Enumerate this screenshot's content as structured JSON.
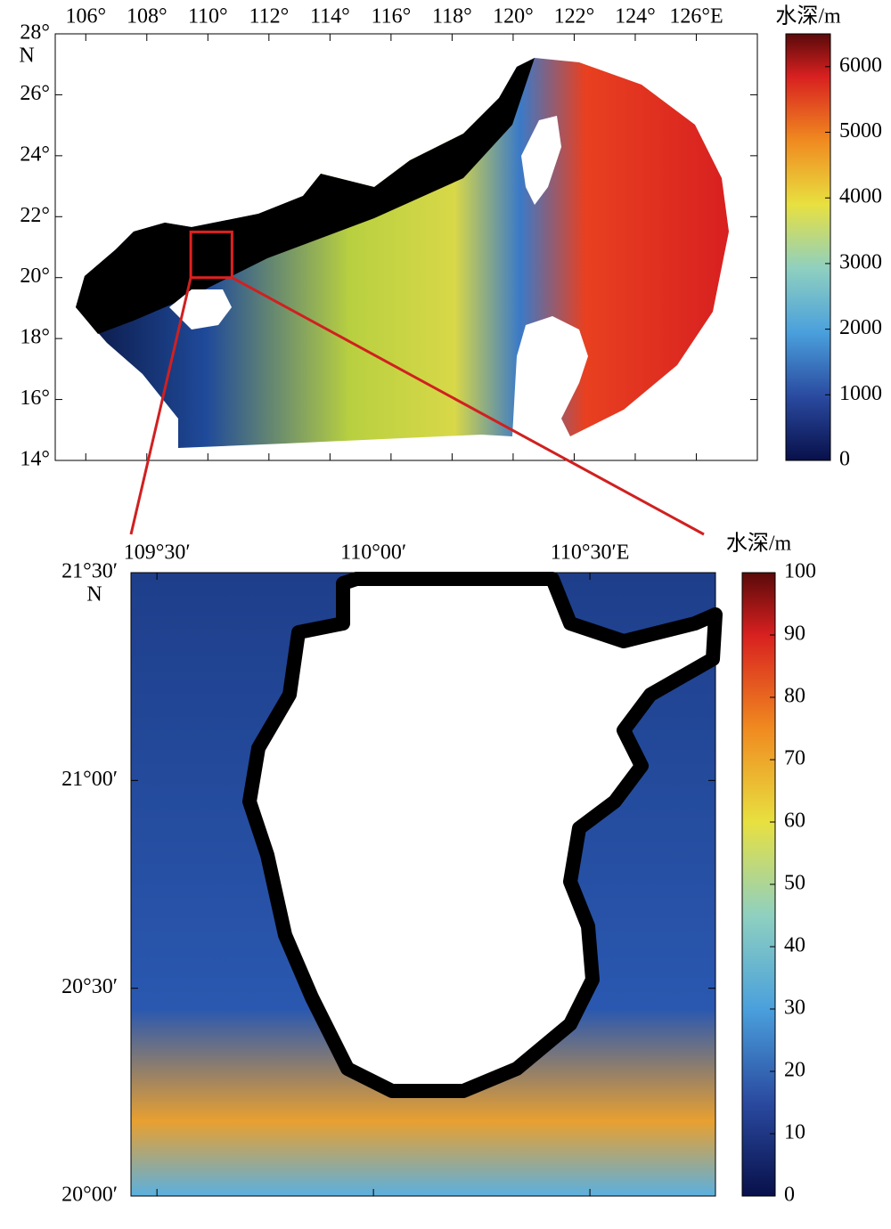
{
  "maps": [
    {
      "xlim": [
        105,
        128
      ],
      "ylim": [
        14,
        28
      ],
      "xticks": [
        {
          "value": 106,
          "label": "106°"
        },
        {
          "value": 108,
          "label": "108°"
        },
        {
          "value": 110,
          "label": "110°"
        },
        {
          "value": 112,
          "label": "112°"
        },
        {
          "value": 114,
          "label": "114°"
        },
        {
          "value": 116,
          "label": "116°"
        },
        {
          "value": 118,
          "label": "118°"
        },
        {
          "value": 120,
          "label": "120°"
        },
        {
          "value": 122,
          "label": "122°"
        },
        {
          "value": 124,
          "label": "124°"
        },
        {
          "value": 126,
          "label": "126°E"
        }
      ],
      "yticks": [
        {
          "value": 14,
          "label": "14°"
        },
        {
          "value": 16,
          "label": "16°"
        },
        {
          "value": 18,
          "label": "18°"
        },
        {
          "value": 20,
          "label": "20°"
        },
        {
          "value": 22,
          "label": "22°"
        },
        {
          "value": 24,
          "label": "24°"
        },
        {
          "value": 26,
          "label": "26°"
        },
        {
          "value": 28,
          "label": "28°"
        }
      ],
      "north": "N",
      "colorbar": {
        "title": "水深/m",
        "lim": [
          0,
          6500
        ],
        "ticks": [
          0,
          1000,
          2000,
          3000,
          4000,
          5000,
          6000
        ]
      }
    },
    {
      "xlim": [
        109.44,
        110.79
      ],
      "ylim": [
        20,
        21.5
      ],
      "xticks": [
        {
          "value": 109.5,
          "label": "109°30′"
        },
        {
          "value": 110,
          "label": "110°00′"
        },
        {
          "value": 110.5,
          "label": "110°30′E"
        }
      ],
      "yticks": [
        {
          "value": 20,
          "label": "20°00′"
        },
        {
          "value": 20.5,
          "label": "20°30′"
        },
        {
          "value": 21,
          "label": "21°00′"
        },
        {
          "value": 21.5,
          "label": "21°30′"
        }
      ],
      "north": "N",
      "colorbar": {
        "title": "水深/m",
        "lim": [
          0,
          100
        ],
        "ticks": [
          0,
          10,
          20,
          30,
          40,
          50,
          60,
          70,
          80,
          90,
          100
        ]
      }
    }
  ]
}
